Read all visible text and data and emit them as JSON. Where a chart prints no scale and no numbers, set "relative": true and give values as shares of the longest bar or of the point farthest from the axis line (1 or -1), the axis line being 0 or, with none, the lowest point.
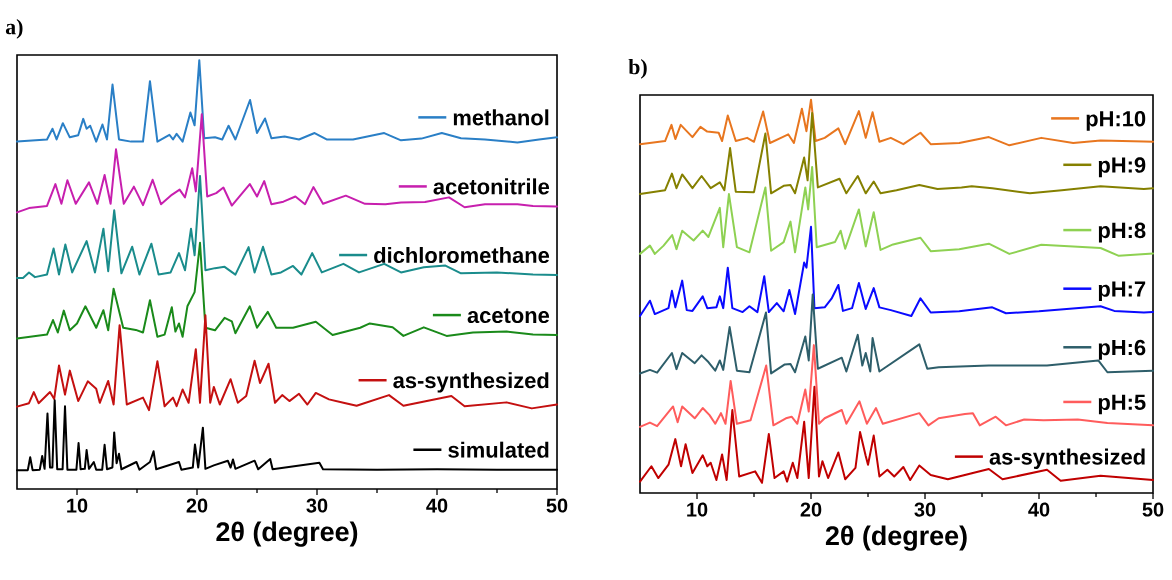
{
  "chart_data": [
    {
      "type": "line",
      "relative": true,
      "xlabel": "2θ (degree)",
      "xlim": [
        5,
        50
      ],
      "xticks": [
        10,
        20,
        30,
        40,
        50
      ],
      "legend": "right",
      "annotations": [
        "a)"
      ],
      "series": [
        {
          "name": "methanol",
          "color": "#2a7fc6",
          "x": [
            5,
            7.5,
            7.96,
            8.3,
            8.82,
            9.4,
            10.1,
            10.52,
            10.8,
            11.1,
            11.6,
            12.12,
            12.5,
            12.96,
            13.5,
            14.5,
            15.5,
            16.08,
            16.7,
            17.7,
            18.0,
            18.3,
            18.8,
            19.45,
            19.8,
            20.19,
            20.6,
            21.5,
            22.1,
            22.63,
            23.2,
            24.42,
            25.0,
            25.67,
            26.2,
            27.3,
            28.5,
            29.8,
            30.8,
            33,
            35.6,
            37,
            38.7,
            40.4,
            42,
            44,
            46.7,
            48.5,
            50
          ],
          "values": [
            0.81,
            0.815,
            0.84,
            0.815,
            0.853,
            0.82,
            0.825,
            0.863,
            0.84,
            0.847,
            0.81,
            0.85,
            0.815,
            0.943,
            0.815,
            0.81,
            0.81,
            0.951,
            0.81,
            0.826,
            0.815,
            0.828,
            0.81,
            0.878,
            0.848,
            1.0,
            0.818,
            0.82,
            0.815,
            0.847,
            0.815,
            0.907,
            0.83,
            0.864,
            0.818,
            0.822,
            0.815,
            0.83,
            0.815,
            0.815,
            0.83,
            0.813,
            0.817,
            0.83,
            0.818,
            0.815,
            0.808,
            0.815,
            0.82
          ]
        },
        {
          "name": "acetonitrile",
          "color": "#c71fae",
          "x": [
            5,
            6,
            7.5,
            8.2,
            8.7,
            9.2,
            9.9,
            11.0,
            11.7,
            12.3,
            12.8,
            13.25,
            13.9,
            14.74,
            15.5,
            16.3,
            17.0,
            17.9,
            18.55,
            19.0,
            19.6,
            19.9,
            20.4,
            20.85,
            21.6,
            22.2,
            22.9,
            24.4,
            25.0,
            25.6,
            26.2,
            27.2,
            28.2,
            29.0,
            29.7,
            30.5,
            32.4,
            34,
            35.7,
            37,
            39.0,
            41.0,
            42.3,
            44,
            46.7,
            48,
            50
          ],
          "values": [
            0.645,
            0.655,
            0.66,
            0.711,
            0.665,
            0.72,
            0.665,
            0.715,
            0.665,
            0.732,
            0.665,
            0.792,
            0.665,
            0.705,
            0.662,
            0.721,
            0.664,
            0.686,
            0.698,
            0.68,
            0.748,
            0.694,
            0.874,
            0.682,
            0.69,
            0.703,
            0.661,
            0.711,
            0.682,
            0.718,
            0.664,
            0.67,
            0.682,
            0.664,
            0.704,
            0.665,
            0.684,
            0.665,
            0.664,
            0.668,
            0.669,
            0.68,
            0.657,
            0.664,
            0.664,
            0.66,
            0.659
          ]
        },
        {
          "name": "dichloromethane",
          "color": "#1a8c8c",
          "x": [
            5,
            5.5,
            6.0,
            6.5,
            7.5,
            8.05,
            8.5,
            9.03,
            9.6,
            10.8,
            11.5,
            12.2,
            12.6,
            13.1,
            13.7,
            14.6,
            15.2,
            16.2,
            16.8,
            17.8,
            18.5,
            19.0,
            19.5,
            19.8,
            20.25,
            20.7,
            21.5,
            22.3,
            23.2,
            24.3,
            24.8,
            25.5,
            26.2,
            27.0,
            28.0,
            28.7,
            29.6,
            30.4,
            32.2,
            33.5,
            35.6,
            37,
            38.9,
            40.7,
            42,
            45,
            48,
            50
          ],
          "values": [
            0.492,
            0.492,
            0.505,
            0.494,
            0.5,
            0.561,
            0.5,
            0.57,
            0.505,
            0.578,
            0.505,
            0.607,
            0.508,
            0.65,
            0.503,
            0.565,
            0.5,
            0.572,
            0.5,
            0.505,
            0.55,
            0.51,
            0.607,
            0.545,
            0.73,
            0.51,
            0.515,
            0.518,
            0.5,
            0.564,
            0.505,
            0.565,
            0.5,
            0.505,
            0.52,
            0.5,
            0.55,
            0.505,
            0.525,
            0.505,
            0.525,
            0.505,
            0.517,
            0.521,
            0.503,
            0.505,
            0.5,
            0.499
          ]
        },
        {
          "name": "acetone",
          "color": "#1a8a1a",
          "x": [
            5,
            7.5,
            8.0,
            8.4,
            8.9,
            9.4,
            10.0,
            10.7,
            11.6,
            12.2,
            12.6,
            13.05,
            13.85,
            14.9,
            15.5,
            16.08,
            16.7,
            17.3,
            17.9,
            18.2,
            18.5,
            18.8,
            19.2,
            19.8,
            20.25,
            20.7,
            21.5,
            22.3,
            22.9,
            23.2,
            24.4,
            25.0,
            25.9,
            26.6,
            28.0,
            29.9,
            31.3,
            33.6,
            34.4,
            36.3,
            37.2,
            38.9,
            40.8,
            43,
            45.8,
            48,
            50
          ],
          "values": [
            0.351,
            0.36,
            0.394,
            0.365,
            0.416,
            0.37,
            0.386,
            0.426,
            0.376,
            0.417,
            0.37,
            0.467,
            0.376,
            0.371,
            0.365,
            0.44,
            0.355,
            0.36,
            0.424,
            0.367,
            0.386,
            0.355,
            0.426,
            0.459,
            0.574,
            0.376,
            0.37,
            0.399,
            0.391,
            0.363,
            0.426,
            0.376,
            0.413,
            0.376,
            0.376,
            0.39,
            0.359,
            0.376,
            0.386,
            0.377,
            0.357,
            0.377,
            0.357,
            0.365,
            0.367,
            0.36,
            0.359
          ]
        },
        {
          "name": "as-synthesized",
          "color": "#c41010",
          "x": [
            5,
            6.0,
            6.4,
            6.8,
            7.75,
            8.1,
            8.5,
            9.0,
            9.4,
            10.1,
            10.9,
            11.6,
            11.9,
            12.6,
            13.05,
            13.55,
            14.15,
            15.5,
            16.0,
            16.7,
            17.3,
            18.0,
            18.3,
            18.8,
            19.3,
            19.9,
            20.25,
            20.7,
            21.1,
            21.4,
            21.9,
            22.8,
            23.4,
            24.1,
            24.8,
            25.25,
            25.96,
            26.5,
            27.1,
            27.7,
            28.5,
            29.2,
            29.9,
            31.0,
            32.2,
            33.3,
            36.0,
            37.2,
            41.2,
            42.3,
            45.8,
            47.9,
            50
          ],
          "values": [
            0.192,
            0.2,
            0.226,
            0.2,
            0.226,
            0.21,
            0.288,
            0.22,
            0.276,
            0.205,
            0.251,
            0.234,
            0.201,
            0.252,
            0.197,
            0.382,
            0.197,
            0.213,
            0.184,
            0.298,
            0.193,
            0.213,
            0.193,
            0.232,
            0.201,
            0.326,
            0.201,
            0.405,
            0.201,
            0.238,
            0.197,
            0.256,
            0.201,
            0.217,
            0.299,
            0.247,
            0.292,
            0.201,
            0.219,
            0.205,
            0.222,
            0.197,
            0.224,
            0.209,
            0.201,
            0.194,
            0.219,
            0.194,
            0.217,
            0.193,
            0.202,
            0.188,
            0.197
          ]
        },
        {
          "name": "simulated",
          "color": "#000000",
          "x": [
            5,
            5.9,
            6.1,
            6.3,
            6.9,
            7.1,
            7.3,
            7.54,
            7.75,
            7.95,
            8.14,
            8.35,
            8.8,
            9.0,
            9.2,
            9.95,
            10.13,
            10.3,
            10.65,
            10.8,
            11.0,
            11.4,
            11.6,
            12.1,
            12.3,
            12.5,
            12.95,
            13.1,
            13.3,
            13.5,
            13.7,
            14.95,
            15.2,
            16.08,
            16.38,
            16.6,
            18.5,
            18.7,
            19.65,
            19.83,
            20.1,
            20.49,
            20.7,
            21.4,
            22.57,
            22.8,
            23.0,
            23.2,
            24.8,
            25.1,
            26.1,
            26.3,
            30.2,
            30.5,
            35,
            40,
            45,
            50
          ],
          "values": [
            0.044,
            0.044,
            0.074,
            0.044,
            0.045,
            0.077,
            0.047,
            0.176,
            0.05,
            0.05,
            0.207,
            0.046,
            0.046,
            0.193,
            0.045,
            0.045,
            0.107,
            0.046,
            0.047,
            0.091,
            0.047,
            0.063,
            0.045,
            0.045,
            0.103,
            0.046,
            0.05,
            0.132,
            0.06,
            0.082,
            0.046,
            0.063,
            0.045,
            0.063,
            0.088,
            0.046,
            0.063,
            0.045,
            0.05,
            0.104,
            0.05,
            0.143,
            0.047,
            0.055,
            0.066,
            0.05,
            0.069,
            0.047,
            0.066,
            0.046,
            0.07,
            0.046,
            0.061,
            0.046,
            0.045,
            0.046,
            0.045,
            0.045
          ]
        }
      ]
    },
    {
      "type": "line",
      "relative": true,
      "xlabel": "2θ (degree)",
      "xlim": [
        5,
        50
      ],
      "xticks": [
        10,
        20,
        30,
        40,
        50
      ],
      "legend": "right",
      "annotations": [
        "b)"
      ],
      "series": [
        {
          "name": "pH:10",
          "color": "#e8761f",
          "x": [
            5,
            7.2,
            7.76,
            8.1,
            8.57,
            9.6,
            10.3,
            10.9,
            11.9,
            12.2,
            12.7,
            13.4,
            14.4,
            15.0,
            15.8,
            16.4,
            17.5,
            18.0,
            18.5,
            19.2,
            19.6,
            20.0,
            20.4,
            21.2,
            22.4,
            23.0,
            24.2,
            24.8,
            25.4,
            26.0,
            27.0,
            28.1,
            29.6,
            30.5,
            33,
            35.6,
            37.4,
            40.2,
            43,
            45.4,
            49.2,
            50
          ],
          "values": [
            0.887,
            0.895,
            0.936,
            0.9,
            0.936,
            0.905,
            0.931,
            0.919,
            0.916,
            0.895,
            0.96,
            0.895,
            0.903,
            0.893,
            0.97,
            0.89,
            0.905,
            0.912,
            0.89,
            0.977,
            0.92,
            1.0,
            0.895,
            0.903,
            0.927,
            0.887,
            0.971,
            0.903,
            0.968,
            0.893,
            0.903,
            0.887,
            0.916,
            0.887,
            0.89,
            0.905,
            0.884,
            0.903,
            0.89,
            0.896,
            0.894,
            0.893
          ]
        },
        {
          "name": "pH:9",
          "color": "#858000",
          "x": [
            5,
            7.2,
            7.8,
            8.2,
            8.7,
            9.6,
            10.4,
            11.2,
            12.0,
            12.4,
            12.9,
            13.4,
            15.0,
            16.0,
            16.5,
            17.6,
            18.2,
            18.6,
            19.4,
            19.7,
            20.1,
            20.6,
            22.5,
            23.1,
            24.1,
            24.8,
            25.5,
            26.1,
            27.5,
            29.5,
            31.1,
            33.2,
            34.1,
            35.9,
            39.2,
            42,
            45.4,
            49.2,
            50
          ],
          "values": [
            0.76,
            0.77,
            0.812,
            0.775,
            0.81,
            0.775,
            0.806,
            0.775,
            0.79,
            0.77,
            0.877,
            0.766,
            0.765,
            0.914,
            0.762,
            0.781,
            0.783,
            0.762,
            0.853,
            0.795,
            0.966,
            0.777,
            0.799,
            0.762,
            0.806,
            0.762,
            0.792,
            0.762,
            0.77,
            0.783,
            0.773,
            0.777,
            0.78,
            0.775,
            0.762,
            0.77,
            0.78,
            0.773,
            0.775
          ]
        },
        {
          "name": "pH:8",
          "color": "#8ed152",
          "x": [
            5,
            5.87,
            6.3,
            7.07,
            7.82,
            8.2,
            8.7,
            9.7,
            10.5,
            11.0,
            12.0,
            12.3,
            12.8,
            13.5,
            14.6,
            16.0,
            16.5,
            17.6,
            18.2,
            18.6,
            19.5,
            19.75,
            20.1,
            20.5,
            22.1,
            22.6,
            23.0,
            24.2,
            24.8,
            25.5,
            26.1,
            27.2,
            29.6,
            30.5,
            33,
            35.6,
            37.4,
            40.2,
            45.4,
            47.0,
            50
          ],
          "values": [
            0.608,
            0.629,
            0.608,
            0.629,
            0.656,
            0.62,
            0.667,
            0.642,
            0.667,
            0.651,
            0.725,
            0.625,
            0.76,
            0.625,
            0.612,
            0.777,
            0.616,
            0.638,
            0.69,
            0.612,
            0.777,
            0.721,
            0.829,
            0.625,
            0.638,
            0.667,
            0.621,
            0.721,
            0.627,
            0.714,
            0.618,
            0.632,
            0.649,
            0.615,
            0.62,
            0.634,
            0.608,
            0.631,
            0.623,
            0.603,
            0.609
          ]
        },
        {
          "name": "pH:7",
          "color": "#0a0aff",
          "x": [
            5,
            5.87,
            6.3,
            7.5,
            7.8,
            8.1,
            8.7,
            9.1,
            9.6,
            10.5,
            10.9,
            11.7,
            12.0,
            12.3,
            12.7,
            13.1,
            14.0,
            14.6,
            15.3,
            15.9,
            16.3,
            17.0,
            17.6,
            18.1,
            18.6,
            19.4,
            19.6,
            20.0,
            20.3,
            21.2,
            21.8,
            22.4,
            22.8,
            23.6,
            24.2,
            24.8,
            25.5,
            26.0,
            27.0,
            28.8,
            29.6,
            30.5,
            33,
            35.9,
            37.1,
            40,
            45.4,
            46.6,
            49.2,
            50
          ],
          "values": [
            0.45,
            0.489,
            0.455,
            0.47,
            0.514,
            0.472,
            0.54,
            0.465,
            0.463,
            0.5,
            0.47,
            0.472,
            0.5,
            0.47,
            0.573,
            0.47,
            0.46,
            0.475,
            0.46,
            0.551,
            0.46,
            0.483,
            0.462,
            0.516,
            0.455,
            0.586,
            0.573,
            0.677,
            0.47,
            0.472,
            0.494,
            0.529,
            0.463,
            0.47,
            0.534,
            0.468,
            0.521,
            0.472,
            0.465,
            0.45,
            0.495,
            0.459,
            0.462,
            0.472,
            0.457,
            0.462,
            0.475,
            0.463,
            0.459,
            0.46
          ]
        },
        {
          "name": "pH:6",
          "color": "#2e5e6a",
          "x": [
            5,
            5.87,
            6.5,
            7.8,
            8.2,
            8.7,
            9.8,
            10.4,
            11.0,
            11.6,
            12.0,
            12.3,
            12.86,
            13.5,
            14.6,
            16.05,
            16.5,
            17.7,
            18.2,
            18.6,
            19.5,
            19.8,
            20.15,
            20.6,
            22.7,
            23.1,
            24.1,
            24.5,
            24.8,
            25.2,
            25.4,
            26.0,
            29.5,
            30.2,
            31.2,
            35.6,
            38.1,
            40.7,
            45.2,
            46.0,
            50
          ],
          "values": [
            0.304,
            0.313,
            0.306,
            0.356,
            0.315,
            0.356,
            0.33,
            0.35,
            0.333,
            0.311,
            0.337,
            0.313,
            0.422,
            0.311,
            0.307,
            0.459,
            0.304,
            0.327,
            0.328,
            0.307,
            0.398,
            0.337,
            0.505,
            0.316,
            0.344,
            0.309,
            0.402,
            0.324,
            0.356,
            0.309,
            0.394,
            0.309,
            0.378,
            0.316,
            0.32,
            0.324,
            0.324,
            0.324,
            0.337,
            0.307,
            0.311
          ]
        },
        {
          "name": "pH:5",
          "color": "#ff5c5c",
          "x": [
            5,
            5.87,
            6.5,
            7.9,
            8.3,
            8.7,
            9.8,
            10.5,
            11.1,
            11.6,
            12.1,
            12.5,
            12.95,
            13.5,
            14.7,
            16.07,
            16.7,
            17.8,
            18.3,
            18.8,
            19.5,
            19.8,
            20.25,
            20.7,
            21.2,
            22.7,
            23.1,
            24.25,
            24.9,
            25.7,
            26.3,
            29.5,
            30.3,
            31.2,
            33.5,
            34.2,
            34.8,
            36.2,
            37.1,
            38.7,
            40.4,
            43.4,
            46,
            50
          ],
          "values": [
            0.168,
            0.179,
            0.17,
            0.22,
            0.18,
            0.22,
            0.19,
            0.216,
            0.198,
            0.176,
            0.203,
            0.176,
            0.285,
            0.176,
            0.185,
            0.324,
            0.172,
            0.19,
            0.194,
            0.176,
            0.263,
            0.207,
            0.376,
            0.176,
            0.19,
            0.211,
            0.176,
            0.233,
            0.176,
            0.216,
            0.176,
            0.203,
            0.172,
            0.19,
            0.201,
            0.203,
            0.172,
            0.194,
            0.172,
            0.187,
            0.185,
            0.187,
            0.178,
            0.172
          ]
        },
        {
          "name": "as-synthesized",
          "color": "#c00000",
          "x": [
            5,
            6.0,
            6.6,
            7.5,
            8.1,
            8.6,
            9.0,
            9.6,
            10.5,
            10.9,
            11.2,
            11.7,
            12.2,
            12.6,
            13.1,
            13.7,
            15.1,
            15.7,
            16.3,
            16.8,
            17.6,
            17.9,
            18.4,
            18.8,
            19.4,
            19.8,
            20.3,
            20.7,
            21.0,
            21.5,
            22.4,
            23.0,
            23.9,
            24.3,
            24.8,
            25.0,
            25.5,
            26.0,
            26.7,
            27.3,
            28.1,
            28.7,
            29.5,
            30.5,
            32.0,
            35.6,
            36.8,
            40.7,
            41.9,
            45.4,
            50
          ],
          "values": [
            0.029,
            0.068,
            0.038,
            0.072,
            0.137,
            0.068,
            0.124,
            0.051,
            0.096,
            0.068,
            0.077,
            0.033,
            0.098,
            0.033,
            0.211,
            0.042,
            0.055,
            0.026,
            0.15,
            0.038,
            0.055,
            0.029,
            0.077,
            0.038,
            0.181,
            0.038,
            0.27,
            0.042,
            0.081,
            0.038,
            0.103,
            0.035,
            0.064,
            0.155,
            0.094,
            0.072,
            0.146,
            0.042,
            0.059,
            0.042,
            0.066,
            0.033,
            0.07,
            0.046,
            0.035,
            0.061,
            0.035,
            0.059,
            0.031,
            0.044,
            0.033
          ]
        }
      ]
    }
  ]
}
